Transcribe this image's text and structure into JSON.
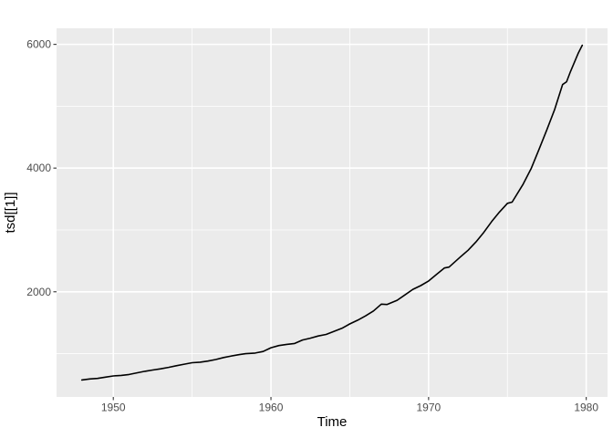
{
  "figure": {
    "background_color": "#FFFFFF"
  },
  "chart_data": {
    "type": "line",
    "title": "",
    "xlabel": "Time",
    "ylabel": "tsd[[1]]",
    "legend": "none",
    "grid": "on",
    "panel_color": "#EBEBEB",
    "grid_major_color": "#FFFFFF",
    "grid_minor_color": "#FFFFFF",
    "line_color": "#000000",
    "tick_label_color": "#4D4D4D",
    "tick_mark_color": "#333333",
    "axis_title_color": "#000000",
    "xlim": [
      1946.4,
      1981.35
    ],
    "ylim": [
      300,
      6260
    ],
    "x_ticks": [
      1950,
      1960,
      1970,
      1980
    ],
    "y_ticks": [
      2000,
      4000,
      6000
    ],
    "x_minor_ticks": [
      1955,
      1965,
      1975
    ],
    "y_minor_ticks": [
      1000,
      3000,
      5000
    ],
    "series": [
      {
        "name": "tsd[[1]]",
        "x": [
          1948,
          1948.5,
          1949,
          1949.5,
          1950,
          1950.5,
          1951,
          1951.5,
          1952,
          1952.5,
          1953,
          1953.5,
          1954,
          1954.5,
          1955,
          1955.5,
          1956,
          1956.5,
          1957,
          1957.5,
          1958,
          1958.4,
          1959,
          1959.5,
          1960,
          1960.5,
          1961,
          1961.5,
          1962,
          1962.5,
          1963,
          1963.5,
          1964,
          1964.5,
          1965,
          1965.5,
          1966,
          1966.5,
          1967,
          1967.35,
          1968,
          1968.5,
          1969,
          1969.5,
          1970,
          1970.5,
          1971,
          1971.3,
          1972,
          1972.5,
          1973,
          1973.5,
          1974,
          1974.5,
          1975,
          1975.3,
          1976,
          1976.5,
          1977,
          1977.5,
          1978,
          1978.5,
          1978.75,
          1979,
          1979.5,
          1979.75
        ],
        "y": [
          575,
          590,
          600,
          620,
          640,
          648,
          663,
          690,
          715,
          735,
          755,
          778,
          805,
          830,
          853,
          862,
          880,
          905,
          938,
          962,
          985,
          1000,
          1010,
          1035,
          1095,
          1130,
          1150,
          1165,
          1220,
          1250,
          1285,
          1310,
          1360,
          1410,
          1480,
          1540,
          1610,
          1690,
          1800,
          1795,
          1862,
          1950,
          2040,
          2100,
          2175,
          2280,
          2385,
          2400,
          2560,
          2670,
          2805,
          2960,
          3135,
          3290,
          3430,
          3450,
          3740,
          3990,
          4300,
          4620,
          4950,
          5350,
          5395,
          5560,
          5860,
          5985
        ]
      }
    ]
  }
}
